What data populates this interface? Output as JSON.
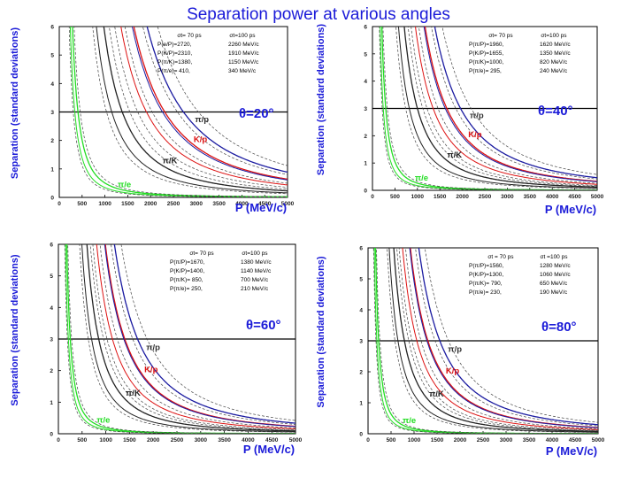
{
  "title": "Separation power at various angles",
  "colors": {
    "pi_e": "#22dd22",
    "pi_K": "#222222",
    "K_p": "#dd1111",
    "pi_p": "#1a1aa0",
    "ref": "#444444",
    "label": "#1a1ad8"
  },
  "chart_data": [
    {
      "type": "line",
      "angle_label": "θ=20°",
      "xlabel": "P (MeV/c)",
      "ylabel": "Separation (standard deviations)",
      "xlim": [
        0,
        5000
      ],
      "ylim": [
        0,
        6
      ],
      "xticks": [
        "0",
        "500",
        "1000",
        "1500",
        "2000",
        "2500",
        "3000",
        "3500",
        "4000",
        "4500",
        "5000"
      ],
      "yticks": [
        "0",
        "1",
        "2",
        "3",
        "4",
        "5",
        "6"
      ],
      "threshold": 3,
      "legend_table": {
        "header": [
          "σt= 70 ps",
          "σt=100 ps"
        ],
        "rows": [
          [
            "P(e/P)=2720,",
            "2260 MeV/c"
          ],
          [
            "P(K/P)=2310,",
            "1910 MeV/c"
          ],
          [
            "P(π/K)=1380,",
            "1150 MeV/c"
          ],
          [
            "P(π/e)= 410,",
            "340 MeV/c"
          ]
        ]
      },
      "series": [
        {
          "name": "π/e",
          "x70": 410,
          "x100": 340
        },
        {
          "name": "π/K",
          "x70": 1380,
          "x100": 1150
        },
        {
          "name": "K/p",
          "x70": 2310,
          "x100": 1910
        },
        {
          "name": "π/p",
          "x70": 2720,
          "x100": 2260
        }
      ]
    },
    {
      "type": "line",
      "angle_label": "θ=40°",
      "xlabel": "P (MeV/c)",
      "ylabel": "Separation (standard deviations)",
      "xlim": [
        0,
        5000
      ],
      "ylim": [
        0,
        6
      ],
      "xticks": [
        "0",
        "500",
        "1000",
        "1500",
        "2000",
        "2500",
        "3000",
        "3500",
        "4000",
        "4500",
        "5000"
      ],
      "yticks": [
        "0",
        "1",
        "2",
        "3",
        "4",
        "5",
        "6"
      ],
      "threshold": 3,
      "legend_table": {
        "header": [
          "σt= 70 ps",
          "σt=100 ps"
        ],
        "rows": [
          [
            "P(π/P)=1960,",
            "1620 MeV/c"
          ],
          [
            "P(K/P)=1655,",
            "1350 MeV/c"
          ],
          [
            "P(π/K)=1000,",
            "820 MeV/c"
          ],
          [
            "P(π/e)= 295,",
            "240 MeV/c"
          ]
        ]
      },
      "series": [
        {
          "name": "π/e",
          "x70": 295,
          "x100": 240
        },
        {
          "name": "π/K",
          "x70": 1000,
          "x100": 820
        },
        {
          "name": "K/p",
          "x70": 1655,
          "x100": 1350
        },
        {
          "name": "π/p",
          "x70": 1960,
          "x100": 1620
        }
      ]
    },
    {
      "type": "line",
      "angle_label": "θ=60°",
      "xlabel": "P (MeV/c)",
      "ylabel": "Separation (standard deviations)",
      "xlim": [
        0,
        5000
      ],
      "ylim": [
        0,
        6
      ],
      "xticks": [
        "0",
        "500",
        "1000",
        "1500",
        "2000",
        "2500",
        "3000",
        "3500",
        "4000",
        "4500",
        "5000"
      ],
      "yticks": [
        "0",
        "1",
        "2",
        "3",
        "4",
        "5",
        "6"
      ],
      "threshold": 3,
      "legend_table": {
        "header": [
          "σt= 70 ps",
          "σt=100 ps"
        ],
        "rows": [
          [
            "P(π/P)=1670,",
            "1380 MeV/c"
          ],
          [
            "P(K/P)=1400,",
            "1140 MeV/c"
          ],
          [
            "P(π/K)= 850,",
            "700 MeV/c"
          ],
          [
            "P(π/e)= 250,",
            "210 MeV/c"
          ]
        ]
      },
      "series": [
        {
          "name": "π/e",
          "x70": 250,
          "x100": 210
        },
        {
          "name": "π/K",
          "x70": 850,
          "x100": 700
        },
        {
          "name": "K/p",
          "x70": 1400,
          "x100": 1140
        },
        {
          "name": "π/p",
          "x70": 1670,
          "x100": 1380
        }
      ]
    },
    {
      "type": "line",
      "angle_label": "θ=80°",
      "xlabel": "P (MeV/c)",
      "ylabel": "Separation (standard deviations)",
      "xlim": [
        0,
        5000
      ],
      "ylim": [
        0,
        6
      ],
      "xticks": [
        "0",
        "500",
        "1000",
        "1500",
        "2000",
        "2500",
        "3000",
        "3500",
        "4000",
        "4500",
        "5000"
      ],
      "yticks": [
        "0",
        "1",
        "2",
        "3",
        "4",
        "5",
        "6"
      ],
      "threshold": 3,
      "legend_table": {
        "header": [
          "σt = 70 ps",
          "σt =100 ps"
        ],
        "rows": [
          [
            "P(π/P)=1560,",
            "1280 MeV/c"
          ],
          [
            "P(K/P)=1300,",
            "1060 MeV/c"
          ],
          [
            "P(π/K)= 790,",
            "650 MeV/c"
          ],
          [
            "P(π/e)= 230,",
            "190 MeV/c"
          ]
        ]
      },
      "series": [
        {
          "name": "π/e",
          "x70": 230,
          "x100": 190
        },
        {
          "name": "π/K",
          "x70": 790,
          "x100": 650
        },
        {
          "name": "K/p",
          "x70": 1300,
          "x100": 1060
        },
        {
          "name": "π/p",
          "x70": 1560,
          "x100": 1280
        }
      ]
    }
  ]
}
